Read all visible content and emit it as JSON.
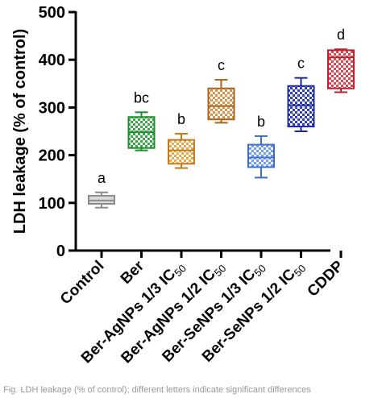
{
  "chart_data": {
    "type": "box",
    "ylabel": "LDH leakage (% of control)",
    "ylim": [
      0,
      500
    ],
    "yticks": [
      0,
      100,
      200,
      300,
      400,
      500
    ],
    "grid": false,
    "legend": "none",
    "categories": [
      {
        "label": "Control",
        "sub": "",
        "color": "#8c8c8c",
        "fill": "#d9d9d9",
        "pattern": "none",
        "min": 90,
        "q1": 98,
        "median": 105,
        "q3": 115,
        "max": 122,
        "sig": "a"
      },
      {
        "label": "Ber",
        "sub": "",
        "color": "#1e8c2e",
        "fill": "#3aaa47",
        "pattern": "check",
        "min": 210,
        "q1": 215,
        "median": 248,
        "q3": 280,
        "max": 290,
        "sig": "bc"
      },
      {
        "label": "Ber-AgNPs 1/3 IC",
        "sub": "50",
        "color": "#c47a1a",
        "fill": "#e9a94a",
        "pattern": "check",
        "min": 173,
        "q1": 182,
        "median": 210,
        "q3": 232,
        "max": 245,
        "sig": "b"
      },
      {
        "label": "Ber-AgNPs 1/2 IC",
        "sub": "50",
        "color": "#a8641c",
        "fill": "#d9944a",
        "pattern": "check",
        "min": 268,
        "q1": 275,
        "median": 303,
        "q3": 340,
        "max": 358,
        "sig": "c"
      },
      {
        "label": "Ber-SeNPs 1/3 IC",
        "sub": "50",
        "color": "#3a6fd1",
        "fill": "#6fa0ee",
        "pattern": "check",
        "min": 153,
        "q1": 175,
        "median": 195,
        "q3": 222,
        "max": 240,
        "sig": "b"
      },
      {
        "label": "Ber-SeNPs 1/2 IC",
        "sub": "50",
        "color": "#1c2a9c",
        "fill": "#2c3fc0",
        "pattern": "check",
        "min": 250,
        "q1": 260,
        "median": 305,
        "q3": 345,
        "max": 362,
        "sig": "c"
      },
      {
        "label": "CDDP",
        "sub": "",
        "color": "#c0202a",
        "fill": "#e04550",
        "pattern": "check",
        "min": 332,
        "q1": 340,
        "median": 405,
        "q3": 420,
        "max": 422,
        "sig": "d"
      }
    ]
  },
  "caption": "Fig. LDH leakage (% of control); different letters indicate significant differences"
}
